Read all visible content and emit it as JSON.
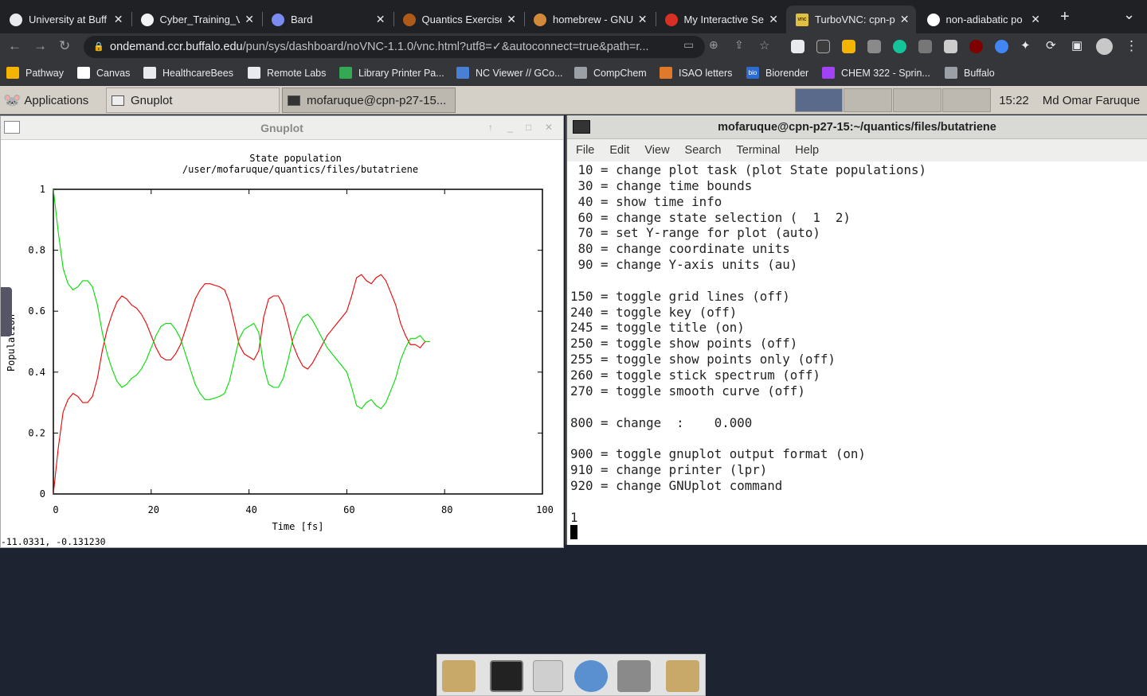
{
  "browser": {
    "tabs": [
      {
        "label": "University at Buff",
        "fav_color": "#e8eaed"
      },
      {
        "label": "Cyber_Training_V",
        "fav_color": "#f1f3f4"
      },
      {
        "label": "Bard",
        "fav_color": "#7b8cf0"
      },
      {
        "label": "Quantics Exercise",
        "fav_color": "#b05a1a"
      },
      {
        "label": "homebrew - GNU",
        "fav_color": "#d4893a"
      },
      {
        "label": "My Interactive Se",
        "fav_color": "#d93025"
      },
      {
        "label": "TurboVNC: cpn-p",
        "fav_color": "#e0c040",
        "fav_text": "vnc",
        "active": true
      },
      {
        "label": "non-adiabatic po",
        "fav_color": "#ffffff"
      }
    ],
    "url_host": "ondemand.ccr.buffalo.edu",
    "url_path": "/pun/sys/dashboard/noVNC-1.1.0/vnc.html?utf8=✓&autoconnect=true&path=r...",
    "bookmarks": [
      {
        "label": "Pathway",
        "color": "#f4b400"
      },
      {
        "label": "Canvas",
        "color": "#ffffff"
      },
      {
        "label": "HealthcareBees",
        "color": "#e8eaed"
      },
      {
        "label": "Remote Labs",
        "color": "#e8eaed"
      },
      {
        "label": "Library Printer Pa...",
        "color": "#34a853"
      },
      {
        "label": "NC Viewer // GCo...",
        "color": "#4a7fd6"
      },
      {
        "label": "CompChem",
        "color": "#9aa0a6"
      },
      {
        "label": "ISAO letters",
        "color": "#e07a2a"
      },
      {
        "label": "Biorender",
        "color": "#2c6bd1",
        "text": "bio"
      },
      {
        "label": "CHEM 322 - Sprin...",
        "color": "#a142f4"
      },
      {
        "label": "Buffalo",
        "color": "#9aa0a6"
      }
    ]
  },
  "desktop": {
    "applications_label": "Applications",
    "tasks": [
      "Gnuplot",
      "mofaruque@cpn-p27-15..."
    ],
    "clock": "15:22",
    "user": "Md Omar Faruque"
  },
  "gnuplot": {
    "window_title": "Gnuplot",
    "status_coords": "-11.0331, -0.131230"
  },
  "chart_data": {
    "type": "line",
    "title": "State population",
    "subtitle": "/user/mofaruque/quantics/files/butatriene",
    "xlabel": "Time [fs]",
    "ylabel": "Population",
    "xlim": [
      0,
      100
    ],
    "ylim": [
      0,
      1
    ],
    "xticks": [
      "0",
      "20",
      "40",
      "60",
      "80",
      "100"
    ],
    "yticks": [
      "0",
      "0.2",
      "0.4",
      "0.6",
      "0.8",
      "1"
    ],
    "grid": false,
    "legend": "none",
    "series": [
      {
        "color": "#ee0000",
        "points": [
          [
            0,
            0
          ],
          [
            1,
            0.15
          ],
          [
            2,
            0.27
          ],
          [
            3,
            0.31
          ],
          [
            4,
            0.33
          ],
          [
            5,
            0.32
          ],
          [
            6,
            0.3
          ],
          [
            7,
            0.3
          ],
          [
            8,
            0.32
          ],
          [
            9,
            0.38
          ],
          [
            10,
            0.47
          ],
          [
            11,
            0.54
          ],
          [
            12,
            0.59
          ],
          [
            13,
            0.63
          ],
          [
            14,
            0.65
          ],
          [
            15,
            0.64
          ],
          [
            16,
            0.62
          ],
          [
            17,
            0.61
          ],
          [
            18,
            0.59
          ],
          [
            19,
            0.56
          ],
          [
            20,
            0.52
          ],
          [
            21,
            0.48
          ],
          [
            22,
            0.45
          ],
          [
            23,
            0.44
          ],
          [
            24,
            0.44
          ],
          [
            25,
            0.46
          ],
          [
            26,
            0.49
          ],
          [
            27,
            0.54
          ],
          [
            28,
            0.59
          ],
          [
            29,
            0.64
          ],
          [
            30,
            0.67
          ],
          [
            31,
            0.69
          ],
          [
            32,
            0.69
          ],
          [
            33,
            0.685
          ],
          [
            34,
            0.68
          ],
          [
            35,
            0.67
          ],
          [
            36,
            0.63
          ],
          [
            37,
            0.56
          ],
          [
            38,
            0.49
          ],
          [
            39,
            0.46
          ],
          [
            40,
            0.45
          ],
          [
            41,
            0.44
          ],
          [
            42,
            0.47
          ],
          [
            43,
            0.58
          ],
          [
            44,
            0.64
          ],
          [
            45,
            0.65
          ],
          [
            46,
            0.65
          ],
          [
            47,
            0.62
          ],
          [
            48,
            0.56
          ],
          [
            49,
            0.49
          ],
          [
            50,
            0.45
          ],
          [
            51,
            0.42
          ],
          [
            52,
            0.41
          ],
          [
            53,
            0.43
          ],
          [
            54,
            0.46
          ],
          [
            55,
            0.49
          ],
          [
            56,
            0.52
          ],
          [
            57,
            0.54
          ],
          [
            58,
            0.56
          ],
          [
            59,
            0.58
          ],
          [
            60,
            0.6
          ],
          [
            61,
            0.65
          ],
          [
            62,
            0.71
          ],
          [
            63,
            0.72
          ],
          [
            64,
            0.7
          ],
          [
            65,
            0.69
          ],
          [
            66,
            0.71
          ],
          [
            67,
            0.72
          ],
          [
            68,
            0.7
          ],
          [
            69,
            0.66
          ],
          [
            70,
            0.62
          ],
          [
            71,
            0.56
          ],
          [
            72,
            0.52
          ],
          [
            73,
            0.49
          ],
          [
            74,
            0.49
          ],
          [
            75,
            0.48
          ],
          [
            76,
            0.5
          ],
          [
            77,
            0.5
          ]
        ]
      },
      {
        "color": "#00dd00",
        "points": [
          [
            0,
            1
          ],
          [
            1,
            0.86
          ],
          [
            2,
            0.74
          ],
          [
            3,
            0.69
          ],
          [
            4,
            0.67
          ],
          [
            5,
            0.68
          ],
          [
            6,
            0.7
          ],
          [
            7,
            0.7
          ],
          [
            8,
            0.68
          ],
          [
            9,
            0.62
          ],
          [
            10,
            0.53
          ],
          [
            11,
            0.46
          ],
          [
            12,
            0.41
          ],
          [
            13,
            0.37
          ],
          [
            14,
            0.35
          ],
          [
            15,
            0.36
          ],
          [
            16,
            0.38
          ],
          [
            17,
            0.39
          ],
          [
            18,
            0.41
          ],
          [
            19,
            0.44
          ],
          [
            20,
            0.48
          ],
          [
            21,
            0.52
          ],
          [
            22,
            0.55
          ],
          [
            23,
            0.56
          ],
          [
            24,
            0.56
          ],
          [
            25,
            0.54
          ],
          [
            26,
            0.51
          ],
          [
            27,
            0.46
          ],
          [
            28,
            0.41
          ],
          [
            29,
            0.36
          ],
          [
            30,
            0.33
          ],
          [
            31,
            0.31
          ],
          [
            32,
            0.31
          ],
          [
            33,
            0.315
          ],
          [
            34,
            0.32
          ],
          [
            35,
            0.33
          ],
          [
            36,
            0.37
          ],
          [
            37,
            0.44
          ],
          [
            38,
            0.51
          ],
          [
            39,
            0.54
          ],
          [
            40,
            0.55
          ],
          [
            41,
            0.56
          ],
          [
            42,
            0.53
          ],
          [
            43,
            0.42
          ],
          [
            44,
            0.36
          ],
          [
            45,
            0.35
          ],
          [
            46,
            0.35
          ],
          [
            47,
            0.38
          ],
          [
            48,
            0.44
          ],
          [
            49,
            0.51
          ],
          [
            50,
            0.55
          ],
          [
            51,
            0.58
          ],
          [
            52,
            0.59
          ],
          [
            53,
            0.57
          ],
          [
            54,
            0.54
          ],
          [
            55,
            0.51
          ],
          [
            56,
            0.48
          ],
          [
            57,
            0.46
          ],
          [
            58,
            0.44
          ],
          [
            59,
            0.42
          ],
          [
            60,
            0.4
          ],
          [
            61,
            0.35
          ],
          [
            62,
            0.29
          ],
          [
            63,
            0.28
          ],
          [
            64,
            0.3
          ],
          [
            65,
            0.31
          ],
          [
            66,
            0.29
          ],
          [
            67,
            0.28
          ],
          [
            68,
            0.3
          ],
          [
            69,
            0.34
          ],
          [
            70,
            0.38
          ],
          [
            71,
            0.44
          ],
          [
            72,
            0.48
          ],
          [
            73,
            0.51
          ],
          [
            74,
            0.51
          ],
          [
            75,
            0.52
          ],
          [
            76,
            0.5
          ],
          [
            77,
            0.5
          ]
        ]
      }
    ]
  },
  "terminal": {
    "window_title": "mofaruque@cpn-p27-15:~/quantics/files/butatriene",
    "menu": [
      "File",
      "Edit",
      "View",
      "Search",
      "Terminal",
      "Help"
    ],
    "lines": [
      " 10 = change plot task (plot State populations)",
      " 30 = change time bounds",
      " 40 = show time info",
      " 60 = change state selection (  1  2)",
      " 70 = set Y-range for plot (auto)",
      " 80 = change coordinate units",
      " 90 = change Y-axis units (au)",
      "",
      "150 = toggle grid lines (off)",
      "240 = toggle key (off)",
      "245 = toggle title (on)",
      "250 = toggle show points (off)",
      "255 = toggle show points only (off)",
      "260 = toggle stick spectrum (off)",
      "270 = toggle smooth curve (off)",
      "",
      "800 = change  :    0.000",
      "",
      "900 = toggle gnuplot output format (on)",
      "910 = change printer (lpr)",
      "920 = change GNUplot command",
      "",
      "1"
    ]
  },
  "dock_icons": [
    "folder-icon",
    "terminal-icon",
    "cabinet-icon",
    "globe-icon",
    "drive-icon",
    "folder2-icon"
  ]
}
